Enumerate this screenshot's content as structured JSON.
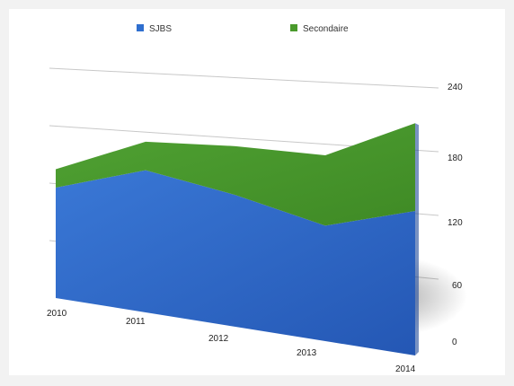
{
  "chart_data": {
    "type": "area",
    "stacked": true,
    "perspective": "3d",
    "x": [
      "2010",
      "2011",
      "2012",
      "2013",
      "2014"
    ],
    "series": [
      {
        "name": "SJBS",
        "values": [
          120,
          150,
          135,
          115,
          140
        ],
        "color": "#2f6fcf"
      },
      {
        "name": "Secondaire",
        "values": [
          20,
          30,
          50,
          70,
          85
        ],
        "color": "#4a9a2c"
      }
    ],
    "y_ticks": [
      "0",
      "60",
      "120",
      "180",
      "240"
    ],
    "ylim": [
      0,
      240
    ],
    "grid": true,
    "legend_position": "top",
    "axis_position": "right"
  }
}
